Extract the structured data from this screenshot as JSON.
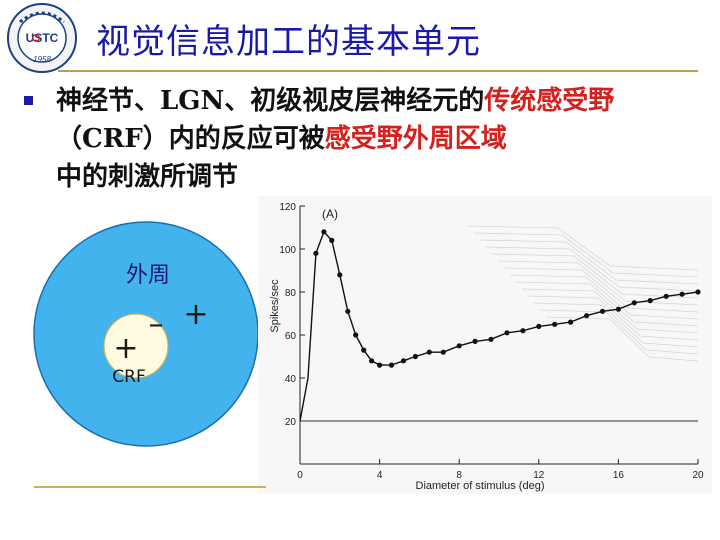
{
  "slide": {
    "title": "视觉信息加工的基本单元",
    "body_parts": [
      {
        "text": "神经节、LGN、初级视皮层神经元的",
        "highlight": false
      },
      {
        "text": "传统感受野",
        "highlight": true
      },
      {
        "text": "（CRF）内的反应可被",
        "highlight": false
      },
      {
        "text": "感受野外周区域",
        "highlight": true
      },
      {
        "text": "中的刺激所调节",
        "highlight": false
      }
    ],
    "colors": {
      "title": "#1a1aa6",
      "highlight": "#d4211e",
      "rule": "#b8a24a"
    }
  },
  "logo": {
    "text": "USTC",
    "year": "1958",
    "icon": "university-seal-icon"
  },
  "diagram": {
    "surround_label": "外周",
    "center_label": "CRF",
    "center_sign": "+",
    "inner_minus": "–",
    "outer_plus": "+",
    "colors": {
      "surround": "#43b3ee",
      "center": "#fffbe0"
    }
  },
  "chart_data": {
    "type": "line",
    "panel_label": "(A)",
    "xlabel": "Diameter of stimulus (deg)",
    "ylabel": "Spikes/sec",
    "xlim": [
      0,
      20
    ],
    "ylim": [
      0,
      120
    ],
    "xticks": [
      "0",
      "4",
      "8",
      "12",
      "16",
      "20"
    ],
    "yticks": [
      "20",
      "40",
      "60",
      "80",
      "100",
      "120"
    ],
    "baseline": 20,
    "x": [
      0.8,
      1.2,
      1.6,
      2.0,
      2.4,
      2.8,
      3.2,
      3.6,
      4.0,
      4.6,
      5.2,
      5.8,
      6.5,
      7.2,
      8.0,
      8.8,
      9.6,
      10.4,
      11.2,
      12.0,
      12.8,
      13.6,
      14.4,
      15.2,
      16.0,
      16.8,
      17.6,
      18.4,
      19.2,
      20.0
    ],
    "y": [
      98,
      108,
      104,
      88,
      71,
      60,
      53,
      48,
      46,
      46,
      48,
      50,
      52,
      52,
      55,
      57,
      58,
      61,
      62,
      64,
      65,
      66,
      69,
      71,
      72,
      75,
      76,
      78,
      79,
      80
    ]
  }
}
